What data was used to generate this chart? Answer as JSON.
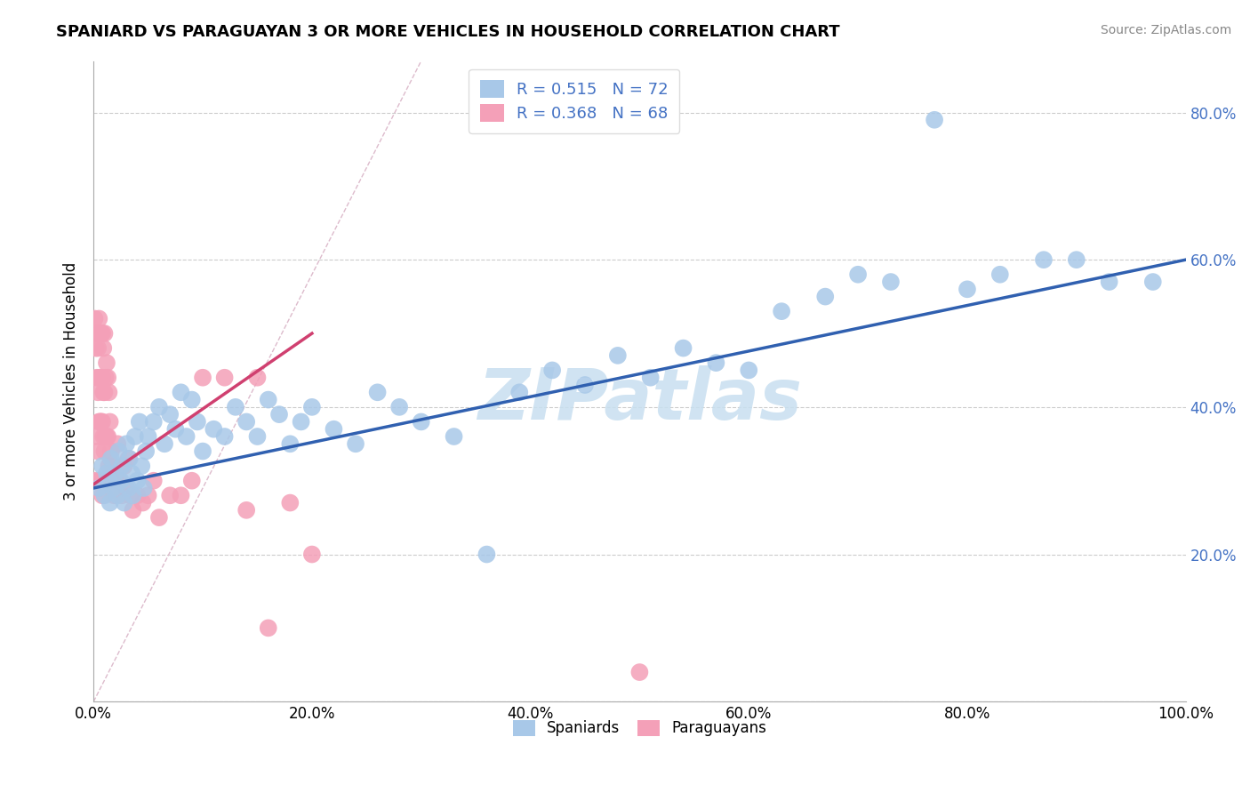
{
  "title": "SPANIARD VS PARAGUAYAN 3 OR MORE VEHICLES IN HOUSEHOLD CORRELATION CHART",
  "source": "Source: ZipAtlas.com",
  "ylabel": "3 or more Vehicles in Household",
  "spaniard_R": 0.515,
  "spaniard_N": 72,
  "paraguayan_R": 0.368,
  "paraguayan_N": 68,
  "spaniard_color": "#A8C8E8",
  "paraguayan_color": "#F4A0B8",
  "spaniard_line_color": "#3060B0",
  "paraguayan_line_color": "#D04070",
  "watermark_color": "#C8DFF0",
  "xlim": [
    0.0,
    1.0
  ],
  "ylim": [
    0.0,
    0.87
  ],
  "spaniard_x": [
    0.005,
    0.008,
    0.01,
    0.012,
    0.014,
    0.015,
    0.016,
    0.018,
    0.02,
    0.022,
    0.023,
    0.025,
    0.026,
    0.028,
    0.03,
    0.032,
    0.033,
    0.035,
    0.036,
    0.038,
    0.04,
    0.042,
    0.044,
    0.046,
    0.048,
    0.05,
    0.055,
    0.06,
    0.065,
    0.07,
    0.075,
    0.08,
    0.085,
    0.09,
    0.095,
    0.1,
    0.11,
    0.12,
    0.13,
    0.14,
    0.15,
    0.16,
    0.17,
    0.18,
    0.19,
    0.2,
    0.22,
    0.24,
    0.26,
    0.28,
    0.3,
    0.33,
    0.36,
    0.39,
    0.42,
    0.45,
    0.48,
    0.51,
    0.54,
    0.57,
    0.6,
    0.63,
    0.67,
    0.7,
    0.73,
    0.77,
    0.8,
    0.83,
    0.87,
    0.9,
    0.93,
    0.97
  ],
  "spaniard_y": [
    0.29,
    0.32,
    0.28,
    0.31,
    0.3,
    0.27,
    0.33,
    0.29,
    0.31,
    0.28,
    0.34,
    0.3,
    0.32,
    0.27,
    0.35,
    0.29,
    0.33,
    0.31,
    0.28,
    0.36,
    0.3,
    0.38,
    0.32,
    0.29,
    0.34,
    0.36,
    0.38,
    0.4,
    0.35,
    0.39,
    0.37,
    0.42,
    0.36,
    0.41,
    0.38,
    0.34,
    0.37,
    0.36,
    0.4,
    0.38,
    0.36,
    0.41,
    0.39,
    0.35,
    0.38,
    0.4,
    0.37,
    0.35,
    0.42,
    0.4,
    0.38,
    0.36,
    0.2,
    0.42,
    0.45,
    0.43,
    0.47,
    0.44,
    0.48,
    0.46,
    0.45,
    0.53,
    0.55,
    0.58,
    0.57,
    0.79,
    0.56,
    0.58,
    0.6,
    0.6,
    0.57,
    0.57
  ],
  "paraguayan_x": [
    0.001,
    0.002,
    0.002,
    0.003,
    0.003,
    0.003,
    0.004,
    0.004,
    0.004,
    0.005,
    0.005,
    0.005,
    0.005,
    0.006,
    0.006,
    0.006,
    0.007,
    0.007,
    0.007,
    0.007,
    0.008,
    0.008,
    0.008,
    0.008,
    0.009,
    0.009,
    0.009,
    0.01,
    0.01,
    0.01,
    0.011,
    0.011,
    0.012,
    0.012,
    0.013,
    0.013,
    0.014,
    0.014,
    0.015,
    0.016,
    0.017,
    0.018,
    0.019,
    0.02,
    0.022,
    0.024,
    0.026,
    0.028,
    0.03,
    0.032,
    0.034,
    0.036,
    0.04,
    0.045,
    0.05,
    0.055,
    0.06,
    0.07,
    0.08,
    0.09,
    0.1,
    0.12,
    0.14,
    0.15,
    0.16,
    0.18,
    0.2,
    0.5
  ],
  "paraguayan_y": [
    0.52,
    0.48,
    0.3,
    0.5,
    0.44,
    0.36,
    0.48,
    0.42,
    0.34,
    0.52,
    0.44,
    0.38,
    0.3,
    0.5,
    0.44,
    0.38,
    0.5,
    0.44,
    0.38,
    0.3,
    0.5,
    0.44,
    0.38,
    0.28,
    0.48,
    0.42,
    0.36,
    0.5,
    0.42,
    0.34,
    0.44,
    0.36,
    0.46,
    0.36,
    0.44,
    0.36,
    0.42,
    0.32,
    0.38,
    0.34,
    0.3,
    0.32,
    0.28,
    0.3,
    0.35,
    0.3,
    0.28,
    0.32,
    0.29,
    0.33,
    0.28,
    0.26,
    0.28,
    0.27,
    0.28,
    0.3,
    0.25,
    0.28,
    0.28,
    0.3,
    0.44,
    0.44,
    0.26,
    0.44,
    0.1,
    0.27,
    0.2,
    0.04
  ],
  "ref_line_x": [
    0.0,
    0.3
  ],
  "ref_line_y": [
    0.0,
    0.87
  ],
  "ytick_positions": [
    0.0,
    0.2,
    0.4,
    0.6,
    0.8
  ],
  "ytick_labels_right": [
    "",
    "20.0%",
    "40.0%",
    "60.0%",
    "80.0%"
  ],
  "xtick_positions": [
    0.0,
    0.2,
    0.4,
    0.6,
    0.8,
    1.0
  ],
  "xtick_labels": [
    "0.0%",
    "20.0%",
    "40.0%",
    "60.0%",
    "80.0%",
    "100.0%"
  ]
}
